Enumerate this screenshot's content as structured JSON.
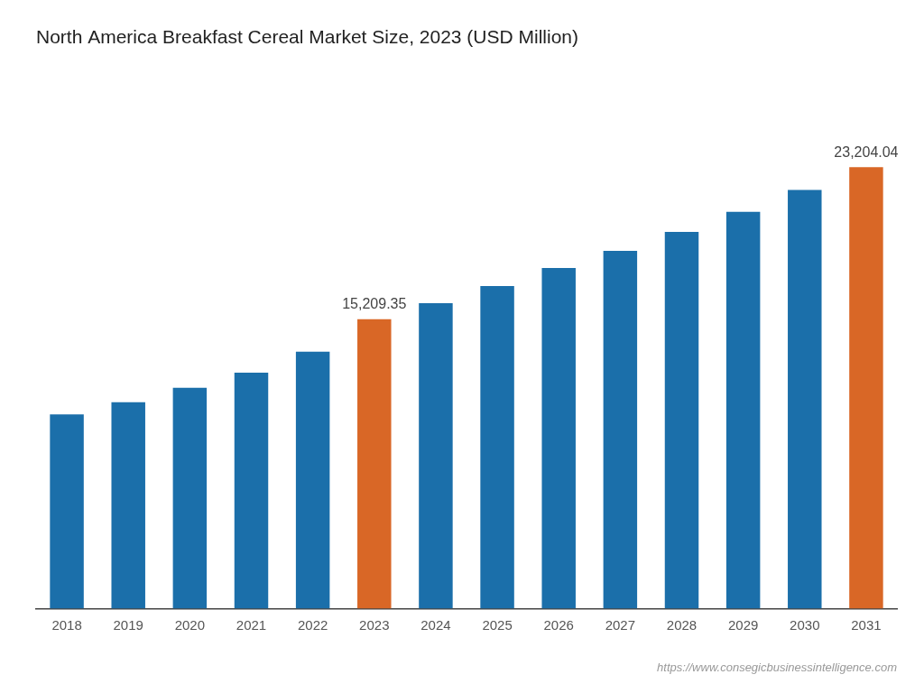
{
  "chart_data": {
    "type": "bar",
    "title": "North America Breakfast Cereal Market Size, 2023 (USD Million)",
    "categories": [
      "2018",
      "2019",
      "2020",
      "2021",
      "2022",
      "2023",
      "2024",
      "2025",
      "2026",
      "2027",
      "2028",
      "2029",
      "2030",
      "2031"
    ],
    "values": [
      10200,
      10850,
      11600,
      12400,
      13500,
      15209.35,
      16050,
      16950,
      17900,
      18800,
      19800,
      20850,
      22000,
      23204.04
    ],
    "colors": [
      "#1b6faa",
      "#1b6faa",
      "#1b6faa",
      "#1b6faa",
      "#1b6faa",
      "#d96726",
      "#1b6faa",
      "#1b6faa",
      "#1b6faa",
      "#1b6faa",
      "#1b6faa",
      "#1b6faa",
      "#1b6faa",
      "#d96726"
    ],
    "data_labels": true,
    "value_labels": [
      null,
      null,
      null,
      null,
      null,
      "15,209.35",
      null,
      null,
      null,
      null,
      null,
      null,
      null,
      "23,204.04"
    ],
    "annotations": [
      "https://www.consegicbusinessintelligence.com"
    ],
    "ylim": [
      0,
      27000
    ],
    "tick_labels": "x",
    "grid": false
  }
}
